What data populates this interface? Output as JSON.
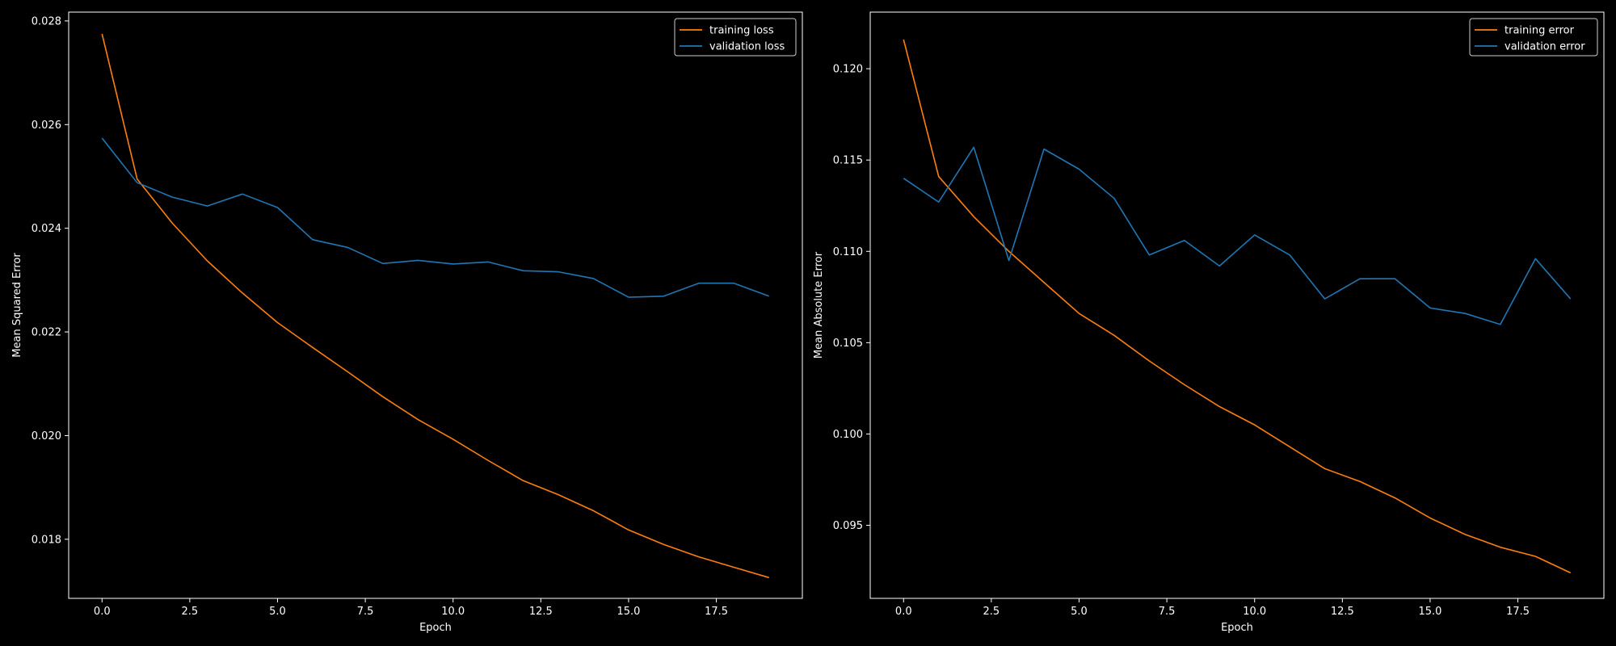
{
  "chart_data": [
    {
      "type": "line",
      "title": "",
      "xlabel": "Epoch",
      "ylabel": "Mean Squared Error",
      "xlim": [
        -0.95,
        19.95
      ],
      "ylim": [
        0.01686,
        0.02817
      ],
      "xticks": [
        0.0,
        2.5,
        5.0,
        7.5,
        10.0,
        12.5,
        15.0,
        17.5
      ],
      "xtick_labels": [
        "0.0",
        "2.5",
        "5.0",
        "7.5",
        "10.0",
        "12.5",
        "15.0",
        "17.5"
      ],
      "yticks": [
        0.018,
        0.02,
        0.022,
        0.024,
        0.026,
        0.028
      ],
      "ytick_labels": [
        "0.018",
        "0.020",
        "0.022",
        "0.024",
        "0.026",
        "0.028"
      ],
      "legend_position": "top-right",
      "grid": false,
      "x": [
        0,
        1,
        2,
        3,
        4,
        5,
        6,
        7,
        8,
        9,
        10,
        11,
        12,
        13,
        14,
        15,
        16,
        17,
        18,
        19
      ],
      "series": [
        {
          "name": "training loss",
          "color": "#ff7f0e",
          "values": [
            0.02775,
            0.02495,
            0.0241,
            0.02337,
            0.02275,
            0.02218,
            0.0217,
            0.02123,
            0.02075,
            0.02031,
            0.01993,
            0.01952,
            0.01913,
            0.01886,
            0.01855,
            0.01818,
            0.0179,
            0.01766,
            0.01746,
            0.01726
          ]
        },
        {
          "name": "validation loss",
          "color": "#1f77b4",
          "values": [
            0.02574,
            0.02488,
            0.0246,
            0.02443,
            0.02466,
            0.0244,
            0.02378,
            0.02363,
            0.02332,
            0.02338,
            0.02331,
            0.02335,
            0.02318,
            0.02316,
            0.02303,
            0.02267,
            0.02269,
            0.02294,
            0.02294,
            0.02269
          ]
        }
      ]
    },
    {
      "type": "line",
      "title": "",
      "xlabel": "Epoch",
      "ylabel": "Mean Absolute Error",
      "xlim": [
        -0.95,
        19.95
      ],
      "ylim": [
        0.091,
        0.1231
      ],
      "xticks": [
        0.0,
        2.5,
        5.0,
        7.5,
        10.0,
        12.5,
        15.0,
        17.5
      ],
      "xtick_labels": [
        "0.0",
        "2.5",
        "5.0",
        "7.5",
        "10.0",
        "12.5",
        "15.0",
        "17.5"
      ],
      "yticks": [
        0.095,
        0.1,
        0.105,
        0.11,
        0.115,
        0.12
      ],
      "ytick_labels": [
        "0.095",
        "0.100",
        "0.105",
        "0.110",
        "0.115",
        "0.120"
      ],
      "legend_position": "top-right",
      "grid": false,
      "x": [
        0,
        1,
        2,
        3,
        4,
        5,
        6,
        7,
        8,
        9,
        10,
        11,
        12,
        13,
        14,
        15,
        16,
        17,
        18,
        19
      ],
      "series": [
        {
          "name": "training error",
          "color": "#ff7f0e",
          "values": [
            0.1216,
            0.1141,
            0.1119,
            0.11,
            0.1083,
            0.1066,
            0.1054,
            0.104,
            0.1027,
            0.1015,
            0.1005,
            0.0993,
            0.0981,
            0.0974,
            0.0965,
            0.0954,
            0.0945,
            0.0938,
            0.0933,
            0.0924
          ]
        },
        {
          "name": "validation error",
          "color": "#1f77b4",
          "values": [
            0.114,
            0.1127,
            0.1157,
            0.1095,
            0.1156,
            0.1145,
            0.1129,
            0.1098,
            0.1106,
            0.1092,
            0.1109,
            0.1098,
            0.1074,
            0.1085,
            0.1085,
            0.1069,
            0.1066,
            0.106,
            0.1096,
            0.1074
          ]
        }
      ]
    }
  ]
}
